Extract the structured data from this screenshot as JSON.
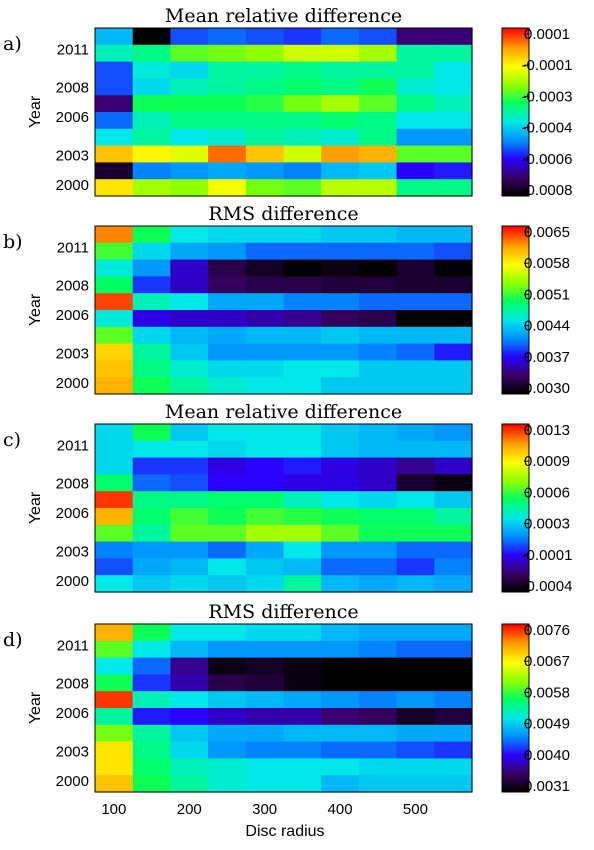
{
  "chart_data": [
    {
      "type": "heatmap",
      "panel_label": "a)",
      "title": "Mean relative difference",
      "ylabel": "Year",
      "xlabel": "Disc radius",
      "x_ticks": [
        "100",
        "200",
        "300",
        "400",
        "500"
      ],
      "y_ticks": [
        "2000",
        "2003",
        "2006",
        "2008",
        "2011"
      ],
      "colorbar_ticks": [
        "0.0001",
        "-0.0001",
        "-0.0003",
        "-0.0004",
        "-0.0006",
        "-0.0008"
      ],
      "vmin": -0.0008,
      "vmax": 0.0001,
      "rows": [
        [
          0.38,
          0.0,
          0.28,
          0.3,
          0.28,
          0.26,
          0.3,
          0.28,
          0.12,
          0.12
        ],
        [
          0.48,
          0.52,
          0.62,
          0.64,
          0.66,
          0.72,
          0.72,
          0.68,
          0.5,
          0.5
        ],
        [
          0.28,
          0.45,
          0.42,
          0.5,
          0.5,
          0.52,
          0.5,
          0.5,
          0.5,
          0.44
        ],
        [
          0.28,
          0.42,
          0.48,
          0.5,
          0.52,
          0.54,
          0.52,
          0.56,
          0.46,
          0.44
        ],
        [
          0.12,
          0.56,
          0.56,
          0.56,
          0.58,
          0.64,
          0.68,
          0.62,
          0.52,
          0.48
        ],
        [
          0.3,
          0.48,
          0.52,
          0.52,
          0.52,
          0.52,
          0.54,
          0.52,
          0.44,
          0.44
        ],
        [
          0.44,
          0.5,
          0.44,
          0.46,
          0.5,
          0.48,
          0.46,
          0.52,
          0.34,
          0.34
        ],
        [
          0.84,
          0.78,
          0.74,
          0.92,
          0.84,
          0.72,
          0.88,
          0.86,
          0.62,
          0.62
        ],
        [
          0.05,
          0.32,
          0.34,
          0.36,
          0.34,
          0.32,
          0.38,
          0.4,
          0.22,
          0.24
        ],
        [
          0.8,
          0.68,
          0.66,
          0.76,
          0.64,
          0.62,
          0.7,
          0.7,
          0.52,
          0.52
        ]
      ]
    },
    {
      "type": "heatmap",
      "panel_label": "b)",
      "title": "RMS difference",
      "ylabel": "Year",
      "xlabel": "Disc radius",
      "x_ticks": [
        "100",
        "200",
        "300",
        "400",
        "500"
      ],
      "y_ticks": [
        "2000",
        "2003",
        "2006",
        "2008",
        "2011"
      ],
      "colorbar_ticks": [
        "0.0065",
        "0.0058",
        "0.0051",
        "0.0044",
        "0.0037",
        "0.0030"
      ],
      "vmin": 0.003,
      "vmax": 0.0065,
      "rows": [
        [
          0.9,
          0.56,
          0.44,
          0.42,
          0.42,
          0.42,
          0.4,
          0.4,
          0.38,
          0.38
        ],
        [
          0.6,
          0.42,
          0.36,
          0.34,
          0.3,
          0.3,
          0.3,
          0.3,
          0.3,
          0.28
        ],
        [
          0.45,
          0.34,
          0.18,
          0.08,
          0.04,
          0.0,
          0.02,
          0.0,
          0.05,
          0.0
        ],
        [
          0.55,
          0.26,
          0.18,
          0.1,
          0.08,
          0.08,
          0.06,
          0.06,
          0.05,
          0.05
        ],
        [
          0.95,
          0.48,
          0.44,
          0.36,
          0.36,
          0.32,
          0.32,
          0.3,
          0.3,
          0.3
        ],
        [
          0.45,
          0.2,
          0.18,
          0.18,
          0.16,
          0.14,
          0.1,
          0.08,
          0.0,
          0.0
        ],
        [
          0.62,
          0.42,
          0.38,
          0.36,
          0.38,
          0.38,
          0.4,
          0.38,
          0.38,
          0.38
        ],
        [
          0.82,
          0.5,
          0.4,
          0.34,
          0.34,
          0.34,
          0.34,
          0.32,
          0.3,
          0.24
        ],
        [
          0.84,
          0.52,
          0.46,
          0.42,
          0.42,
          0.44,
          0.44,
          0.4,
          0.4,
          0.4
        ],
        [
          0.86,
          0.56,
          0.5,
          0.46,
          0.44,
          0.44,
          0.4,
          0.4,
          0.4,
          0.4
        ]
      ]
    },
    {
      "type": "heatmap",
      "panel_label": "c)",
      "title": "Mean relative difference",
      "ylabel": "Year",
      "xlabel": "Disc radius",
      "x_ticks": [
        "100",
        "200",
        "300",
        "400",
        "500"
      ],
      "y_ticks": [
        "2000",
        "2003",
        "2006",
        "2008",
        "2011"
      ],
      "colorbar_ticks": [
        "0.0013",
        "0.0009",
        "0.0006",
        "0.0003",
        "-0.0001",
        "-0.0004"
      ],
      "vmin": -0.0004,
      "vmax": 0.0013,
      "rows": [
        [
          0.42,
          0.56,
          0.4,
          0.44,
          0.44,
          0.44,
          0.4,
          0.38,
          0.36,
          0.34
        ],
        [
          0.42,
          0.44,
          0.44,
          0.42,
          0.44,
          0.44,
          0.4,
          0.38,
          0.38,
          0.38
        ],
        [
          0.42,
          0.26,
          0.26,
          0.2,
          0.22,
          0.24,
          0.2,
          0.18,
          0.14,
          0.18
        ],
        [
          0.54,
          0.3,
          0.28,
          0.22,
          0.22,
          0.2,
          0.2,
          0.18,
          0.05,
          0.02
        ],
        [
          0.96,
          0.52,
          0.52,
          0.54,
          0.54,
          0.48,
          0.44,
          0.42,
          0.44,
          0.4
        ],
        [
          0.86,
          0.54,
          0.6,
          0.56,
          0.6,
          0.58,
          0.56,
          0.54,
          0.54,
          0.5
        ],
        [
          0.62,
          0.5,
          0.62,
          0.62,
          0.68,
          0.68,
          0.62,
          0.56,
          0.56,
          0.56
        ],
        [
          0.32,
          0.34,
          0.34,
          0.3,
          0.36,
          0.44,
          0.34,
          0.34,
          0.3,
          0.3
        ],
        [
          0.28,
          0.36,
          0.38,
          0.44,
          0.4,
          0.38,
          0.3,
          0.3,
          0.26,
          0.32
        ],
        [
          0.44,
          0.4,
          0.42,
          0.4,
          0.42,
          0.5,
          0.38,
          0.36,
          0.38,
          0.36
        ]
      ]
    },
    {
      "type": "heatmap",
      "panel_label": "d)",
      "title": "RMS difference",
      "ylabel": "Year",
      "xlabel": "Disc radius",
      "x_ticks": [
        "100",
        "200",
        "300",
        "400",
        "500"
      ],
      "y_ticks": [
        "2000",
        "2003",
        "2006",
        "2008",
        "2011"
      ],
      "colorbar_ticks": [
        "0.0076",
        "0.0067",
        "0.0058",
        "0.0049",
        "0.0040",
        "0.0031"
      ],
      "vmin": 0.0031,
      "vmax": 0.0076,
      "rows": [
        [
          0.86,
          0.56,
          0.44,
          0.44,
          0.42,
          0.42,
          0.38,
          0.36,
          0.36,
          0.36
        ],
        [
          0.62,
          0.44,
          0.38,
          0.34,
          0.34,
          0.34,
          0.34,
          0.32,
          0.3,
          0.3
        ],
        [
          0.44,
          0.3,
          0.14,
          0.02,
          0.04,
          0.02,
          0.0,
          0.0,
          0.0,
          0.0
        ],
        [
          0.56,
          0.26,
          0.16,
          0.08,
          0.06,
          0.02,
          0.0,
          0.0,
          0.0,
          0.0
        ],
        [
          0.96,
          0.48,
          0.44,
          0.4,
          0.38,
          0.36,
          0.34,
          0.32,
          0.34,
          0.32
        ],
        [
          0.5,
          0.24,
          0.22,
          0.18,
          0.16,
          0.16,
          0.12,
          0.1,
          0.04,
          0.06
        ],
        [
          0.64,
          0.5,
          0.4,
          0.36,
          0.36,
          0.38,
          0.38,
          0.38,
          0.36,
          0.36
        ],
        [
          0.8,
          0.52,
          0.42,
          0.34,
          0.32,
          0.32,
          0.3,
          0.3,
          0.28,
          0.26
        ],
        [
          0.8,
          0.54,
          0.48,
          0.46,
          0.44,
          0.44,
          0.44,
          0.42,
          0.42,
          0.42
        ],
        [
          0.84,
          0.56,
          0.5,
          0.46,
          0.44,
          0.44,
          0.38,
          0.4,
          0.4,
          0.4
        ]
      ]
    }
  ]
}
